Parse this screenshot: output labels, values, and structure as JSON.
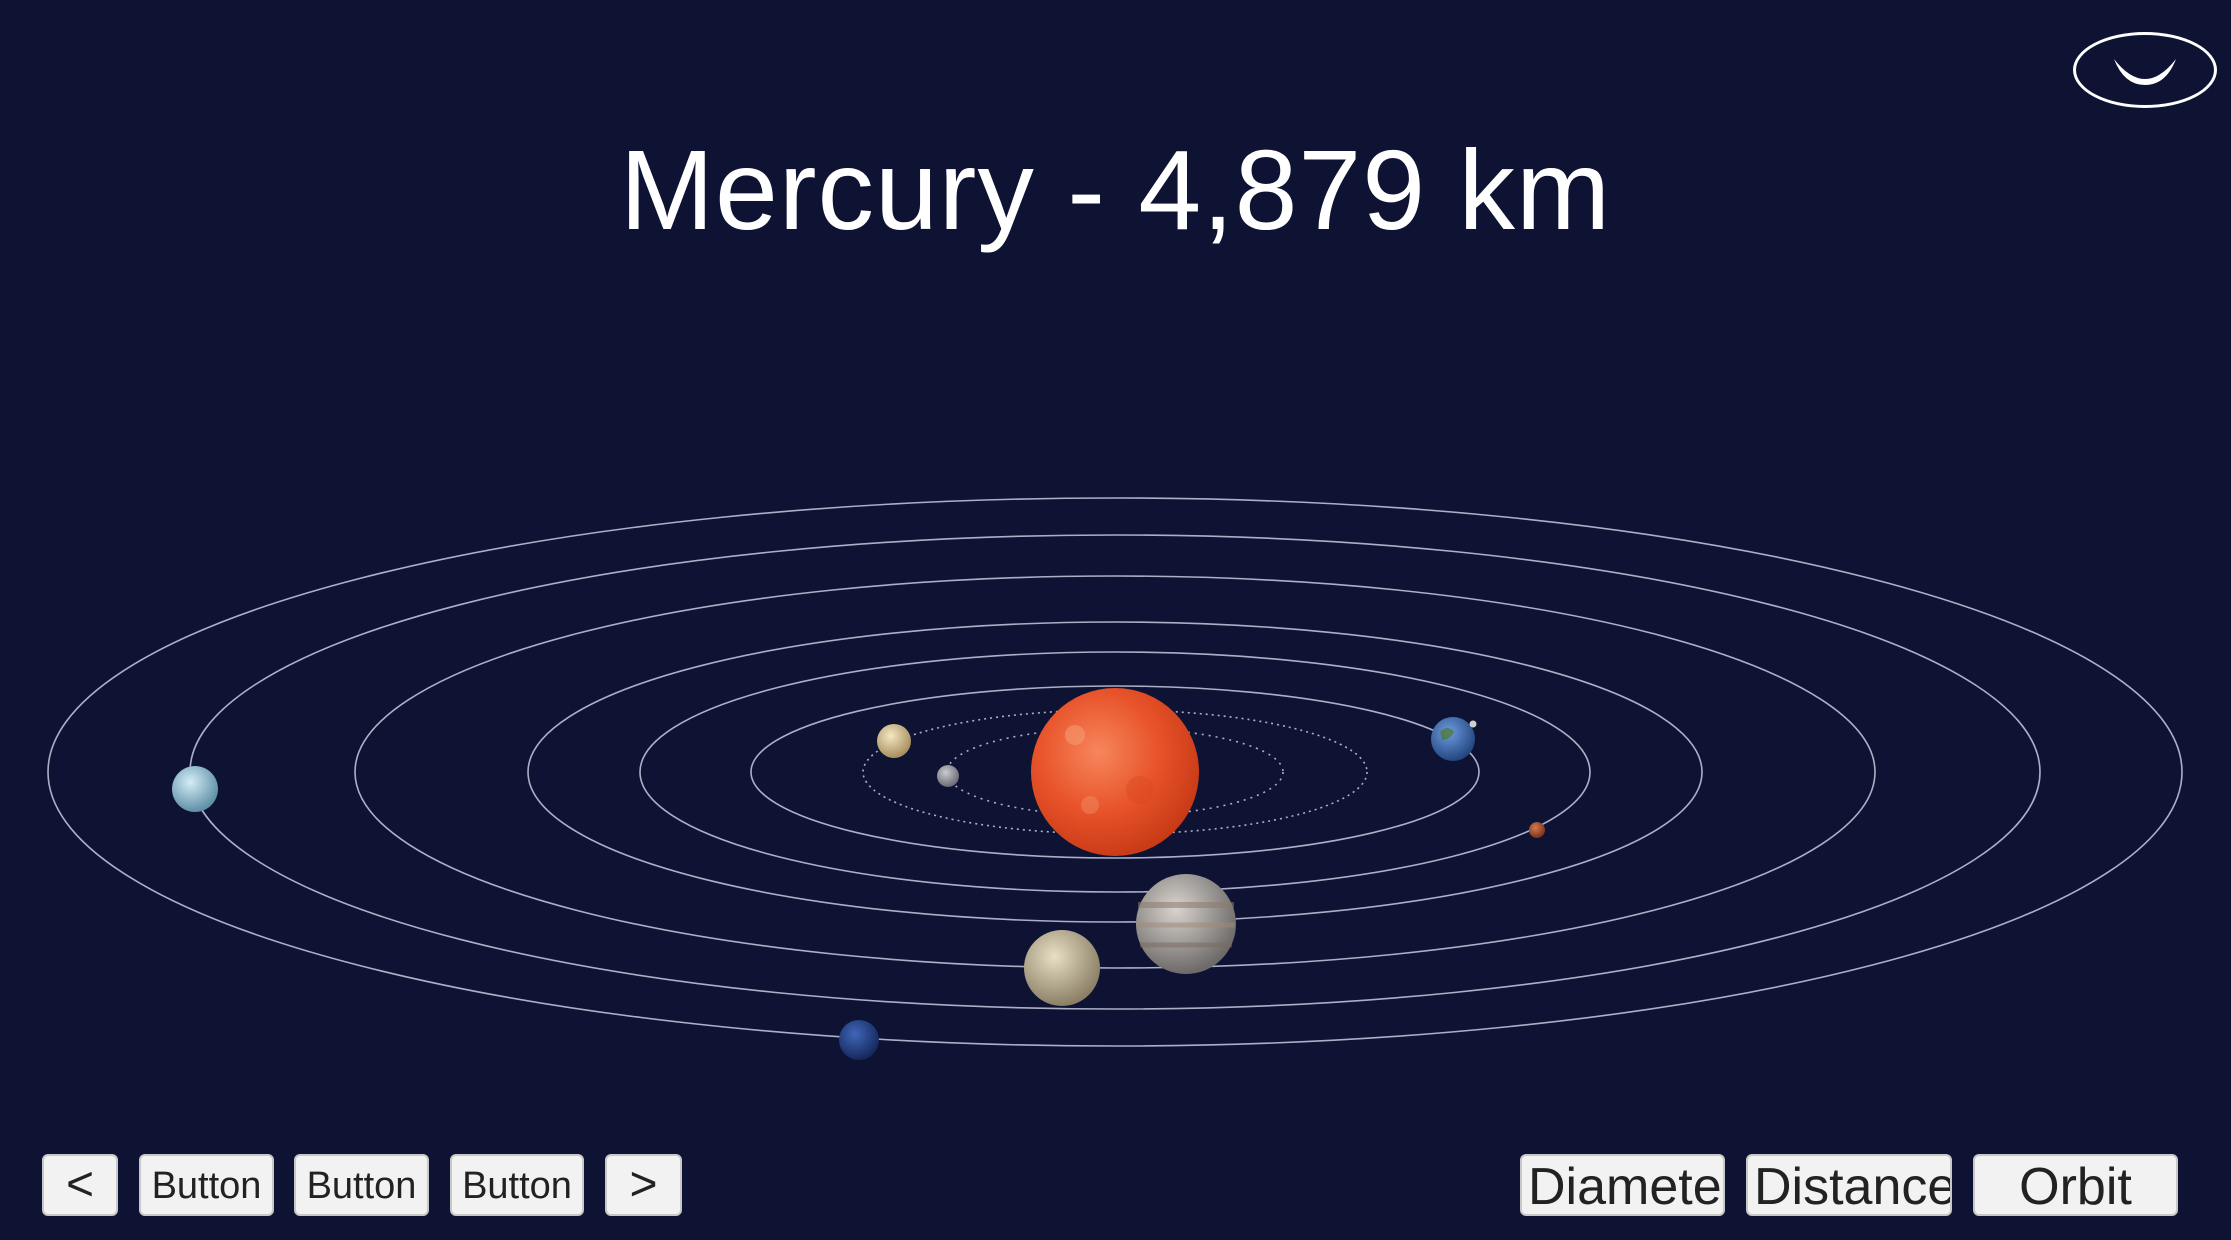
{
  "header": {
    "title": "Mercury - 4,879 km"
  },
  "colors": {
    "background": "#0e1333",
    "orbit_line": "#c8cbe0",
    "button_bg": "#f2f2f2",
    "button_text": "#222222",
    "sun": "#ea5a2d"
  },
  "logo": {
    "icon": "smile-ellipse-icon"
  },
  "nav": {
    "prev_label": "<",
    "button_1_label": "Button",
    "button_2_label": "Button",
    "button_3_label": "Button",
    "next_label": ">"
  },
  "modes": {
    "diameter_label": "Diameter",
    "distance_label": "Distance",
    "orbit_label": "Orbit"
  },
  "bodies": [
    "sun",
    "mercury",
    "venus",
    "earth",
    "mars",
    "jupiter",
    "saturn",
    "uranus",
    "neptune"
  ]
}
